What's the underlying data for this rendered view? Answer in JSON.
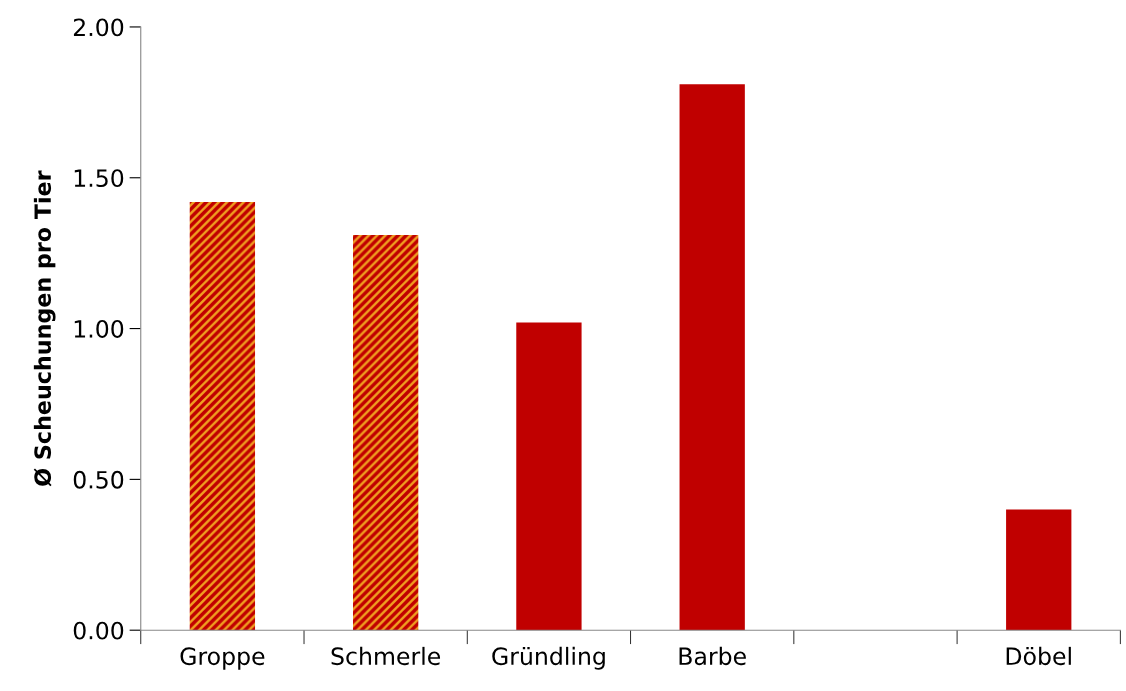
{
  "chart_data": {
    "type": "bar",
    "ylabel": "Ø Scheuchungen pro Tier",
    "categories": [
      "Groppe",
      "Schmerle",
      "Gründling",
      "Barbe",
      null,
      "Döbel"
    ],
    "values": [
      1.42,
      1.31,
      1.02,
      1.81,
      null,
      0.4
    ],
    "colors": [
      "#f0a020",
      "#f0a020",
      "#c00000",
      "#c00000",
      "#c00000",
      "#c00000"
    ],
    "ylim": [
      0,
      2
    ],
    "yticks": [
      {
        "value": 0,
        "label": "0.00"
      },
      {
        "value": 0.5,
        "label": "0.50"
      },
      {
        "value": 1,
        "label": "1.00"
      },
      {
        "value": 1.5,
        "label": "1.50"
      },
      {
        "value": 2,
        "label": "2.00"
      }
    ],
    "grid": false,
    "legend": false
  }
}
